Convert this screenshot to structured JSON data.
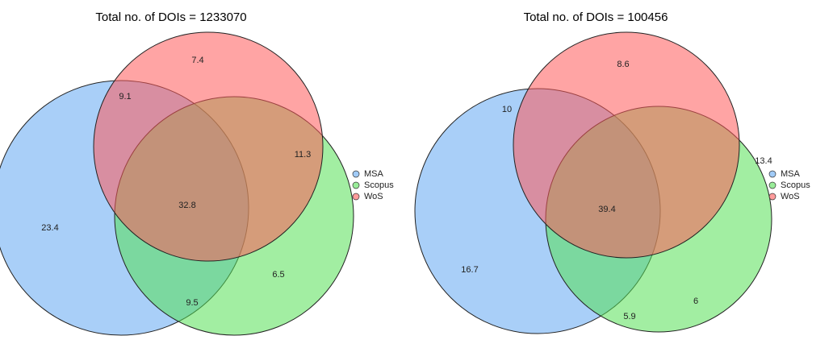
{
  "chart_data": [
    {
      "type": "venn",
      "title": "Total no. of DOIs = 1233070",
      "series": [
        {
          "name": "MSA",
          "color": "#62a8f2"
        },
        {
          "name": "Scopus",
          "color": "#55e055"
        },
        {
          "name": "WoS",
          "color": "#ff5a5a"
        }
      ],
      "values": [
        23.4,
        6.5,
        7.4,
        9.5,
        9.1,
        11.3,
        32.8
      ]
    },
    {
      "type": "venn",
      "title": "Total no. of DOIs = 100456",
      "series": [
        {
          "name": "MSA",
          "color": "#62a8f2"
        },
        {
          "name": "Scopus",
          "color": "#55e055"
        },
        {
          "name": "WoS",
          "color": "#ff5a5a"
        }
      ],
      "values": [
        16.7,
        6,
        8.6,
        5.9,
        10,
        13.4,
        39.4
      ]
    }
  ]
}
